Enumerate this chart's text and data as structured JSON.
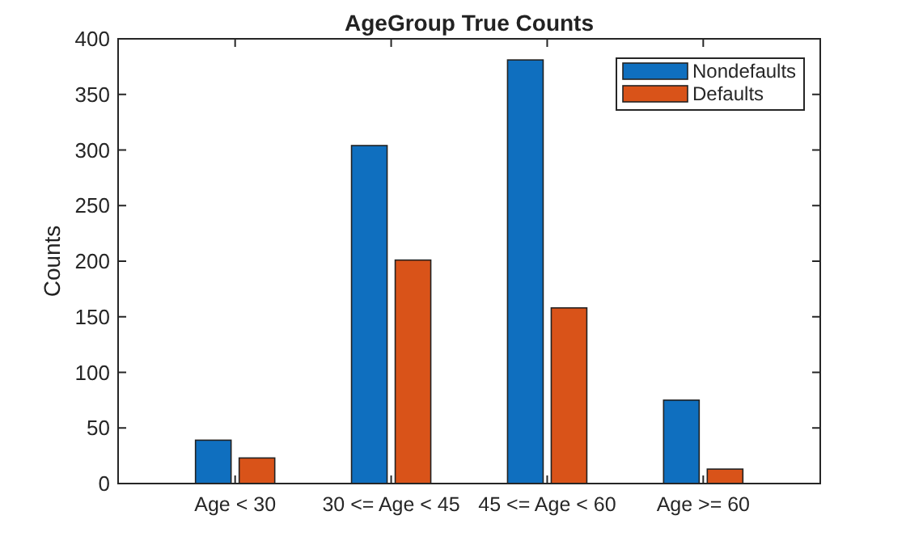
{
  "chart_data": {
    "type": "bar",
    "title": "AgeGroup True Counts",
    "ylabel": "Counts",
    "categories": [
      "Age < 30",
      "30 <= Age < 45",
      "45 <= Age < 60",
      "Age >= 60"
    ],
    "series": [
      {
        "name": "Nondefaults",
        "color": "#0f6fbf",
        "values": [
          39,
          304,
          381,
          75
        ]
      },
      {
        "name": "Defaults",
        "color": "#d95319",
        "values": [
          23,
          201,
          158,
          13
        ]
      }
    ],
    "ylim": [
      0,
      400
    ],
    "yticks": [
      0,
      50,
      100,
      150,
      200,
      250,
      300,
      350,
      400
    ],
    "legend": "top right",
    "grid": false
  }
}
